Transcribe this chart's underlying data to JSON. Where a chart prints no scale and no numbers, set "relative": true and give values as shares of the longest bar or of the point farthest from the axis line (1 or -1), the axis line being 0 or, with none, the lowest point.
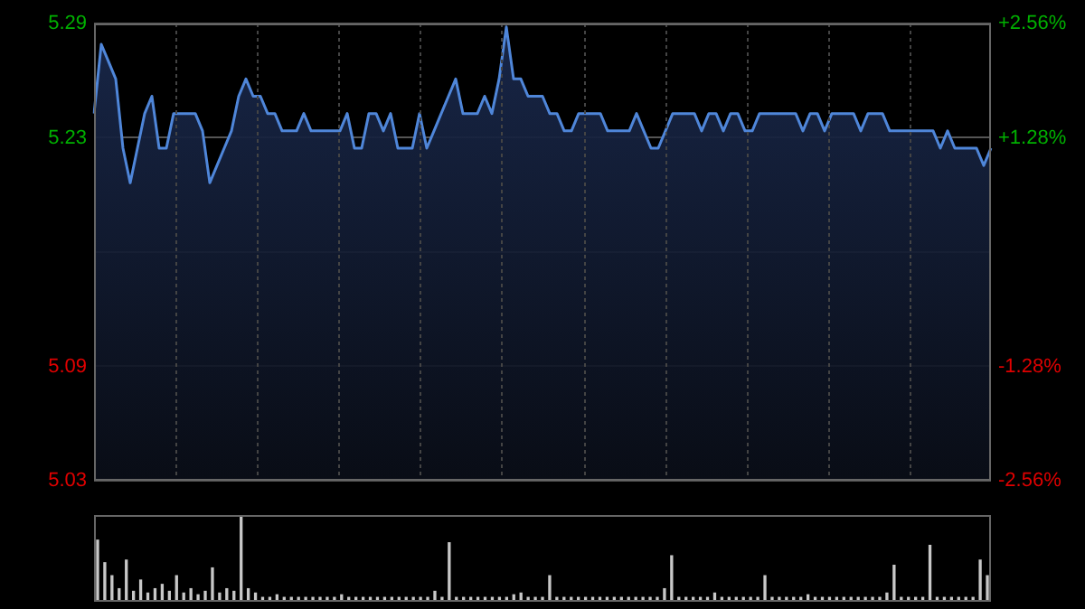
{
  "chart_data": [
    {
      "type": "area",
      "categories": [
        null,
        null,
        null,
        null,
        null,
        null,
        null,
        null,
        null,
        null,
        null,
        null,
        null,
        null,
        null,
        null,
        null,
        null,
        null,
        null,
        null,
        null,
        null,
        null,
        null,
        null,
        null,
        null,
        null,
        null,
        null,
        null,
        null,
        null,
        null,
        null,
        null,
        null,
        null,
        null,
        null,
        null,
        null,
        null,
        null,
        null,
        null,
        null,
        null,
        null,
        null,
        null,
        null,
        null,
        null,
        null,
        null,
        null,
        null,
        null,
        null,
        null,
        null,
        null,
        null,
        null,
        null,
        null,
        null,
        null,
        null,
        null,
        null,
        null,
        null,
        null,
        null,
        null,
        null,
        null,
        null,
        null,
        null,
        null,
        null,
        null,
        null,
        null,
        null,
        null,
        null,
        null,
        null,
        null,
        null,
        null,
        null,
        null,
        null,
        null,
        null,
        null,
        null,
        null,
        null,
        null,
        null,
        null,
        null,
        null,
        null,
        null,
        null,
        null,
        null,
        null,
        null,
        null,
        null,
        null,
        null,
        null,
        null,
        null,
        null
      ],
      "color": "#4f86d9",
      "values": [
        5.24,
        5.28,
        5.27,
        5.26,
        5.22,
        5.2,
        5.22,
        5.24,
        5.25,
        5.22,
        5.22,
        5.24,
        5.24,
        5.24,
        5.24,
        5.23,
        5.2,
        5.21,
        5.22,
        5.23,
        5.25,
        5.26,
        5.25,
        5.25,
        5.24,
        5.24,
        5.23,
        5.23,
        5.23,
        5.24,
        5.23,
        5.23,
        5.23,
        5.23,
        5.23,
        5.24,
        5.22,
        5.22,
        5.24,
        5.24,
        5.23,
        5.24,
        5.22,
        5.22,
        5.22,
        5.24,
        5.22,
        5.23,
        5.24,
        5.25,
        5.26,
        5.24,
        5.24,
        5.24,
        5.25,
        5.24,
        5.26,
        5.29,
        5.26,
        5.26,
        5.25,
        5.25,
        5.25,
        5.24,
        5.24,
        5.23,
        5.23,
        5.24,
        5.24,
        5.24,
        5.24,
        5.23,
        5.23,
        5.23,
        5.23,
        5.24,
        5.23,
        5.22,
        5.22,
        5.23,
        5.24,
        5.24,
        5.24,
        5.24,
        5.23,
        5.24,
        5.24,
        5.23,
        5.24,
        5.24,
        5.23,
        5.23,
        5.24,
        5.24,
        5.24,
        5.24,
        5.24,
        5.24,
        5.23,
        5.24,
        5.24,
        5.23,
        5.24,
        5.24,
        5.24,
        5.24,
        5.23,
        5.24,
        5.24,
        5.24,
        5.23,
        5.23,
        5.23,
        5.23,
        5.23,
        5.23,
        5.23,
        5.22,
        5.23,
        5.22,
        5.22,
        5.22,
        5.22,
        5.21,
        5.22
      ],
      "ylim": [
        5.028,
        5.292
      ],
      "yticks": [
        {
          "value": 5.028,
          "label": "5.03"
        },
        {
          "value": 5.094,
          "label": "5.09"
        },
        {
          "value": 5.16,
          "label": null
        },
        {
          "value": 5.226,
          "label": "5.23"
        },
        {
          "value": 5.292,
          "label": "5.29"
        }
      ],
      "y2lim": [
        -2.56,
        2.56
      ],
      "y2ticks": [
        {
          "value": -2.56,
          "label": "-2.56%"
        },
        {
          "value": -1.28,
          "label": "-1.28%"
        },
        {
          "value": 0,
          "label": null
        },
        {
          "value": 1.28,
          "label": "+1.28%"
        },
        {
          "value": 2.56,
          "label": "+2.56%"
        }
      ],
      "tick_labels": "y",
      "grid": true,
      "legend": false
    },
    {
      "type": "bar",
      "relative": true,
      "categories": [
        null,
        null,
        null,
        null,
        null,
        null,
        null,
        null,
        null,
        null,
        null,
        null,
        null,
        null,
        null,
        null,
        null,
        null,
        null,
        null,
        null,
        null,
        null,
        null,
        null,
        null,
        null,
        null,
        null,
        null,
        null,
        null,
        null,
        null,
        null,
        null,
        null,
        null,
        null,
        null,
        null,
        null,
        null,
        null,
        null,
        null,
        null,
        null,
        null,
        null,
        null,
        null,
        null,
        null,
        null,
        null,
        null,
        null,
        null,
        null,
        null,
        null,
        null,
        null,
        null,
        null,
        null,
        null,
        null,
        null,
        null,
        null,
        null,
        null,
        null,
        null,
        null,
        null,
        null,
        null,
        null,
        null,
        null,
        null,
        null,
        null,
        null,
        null,
        null,
        null,
        null,
        null,
        null,
        null,
        null,
        null,
        null,
        null,
        null,
        null,
        null,
        null,
        null,
        null,
        null,
        null,
        null,
        null,
        null,
        null,
        null,
        null,
        null,
        null,
        null,
        null,
        null,
        null,
        null,
        null,
        null,
        null,
        null,
        null,
        null
      ],
      "color": "#c8c8c8",
      "values": [
        0.71,
        0.45,
        0.3,
        0.15,
        0.48,
        0.12,
        0.25,
        0.1,
        0.15,
        0.2,
        0.12,
        0.3,
        0.1,
        0.15,
        0.08,
        0.12,
        0.39,
        0.1,
        0.15,
        0.12,
        1,
        0.15,
        0.1,
        0.05,
        0.05,
        0.08,
        0.05,
        0.05,
        0.05,
        0.05,
        0.05,
        0.05,
        0.05,
        0.05,
        0.08,
        0.05,
        0.05,
        0.05,
        0.05,
        0.05,
        0.05,
        0.05,
        0.05,
        0.05,
        0.05,
        0.05,
        0.05,
        0.12,
        0.05,
        0.68,
        0.05,
        0.05,
        0.05,
        0.05,
        0.05,
        0.05,
        0.05,
        0.05,
        0.08,
        0.1,
        0.05,
        0.05,
        0.05,
        0.3,
        0.05,
        0.05,
        0.05,
        0.05,
        0.05,
        0.05,
        0.05,
        0.05,
        0.05,
        0.05,
        0.05,
        0.05,
        0.05,
        0.05,
        0.05,
        0.15,
        0.53,
        0.05,
        0.05,
        0.05,
        0.05,
        0.05,
        0.1,
        0.05,
        0.05,
        0.05,
        0.05,
        0.05,
        0.05,
        0.3,
        0.05,
        0.05,
        0.05,
        0.05,
        0.05,
        0.08,
        0.05,
        0.05,
        0.05,
        0.05,
        0.05,
        0.05,
        0.05,
        0.05,
        0.05,
        0.05,
        0.1,
        0.42,
        0.05,
        0.05,
        0.05,
        0.05,
        0.65,
        0.05,
        0.05,
        0.05,
        0.05,
        0.05,
        0.05,
        0.48,
        0.3
      ],
      "legend": false
    }
  ]
}
